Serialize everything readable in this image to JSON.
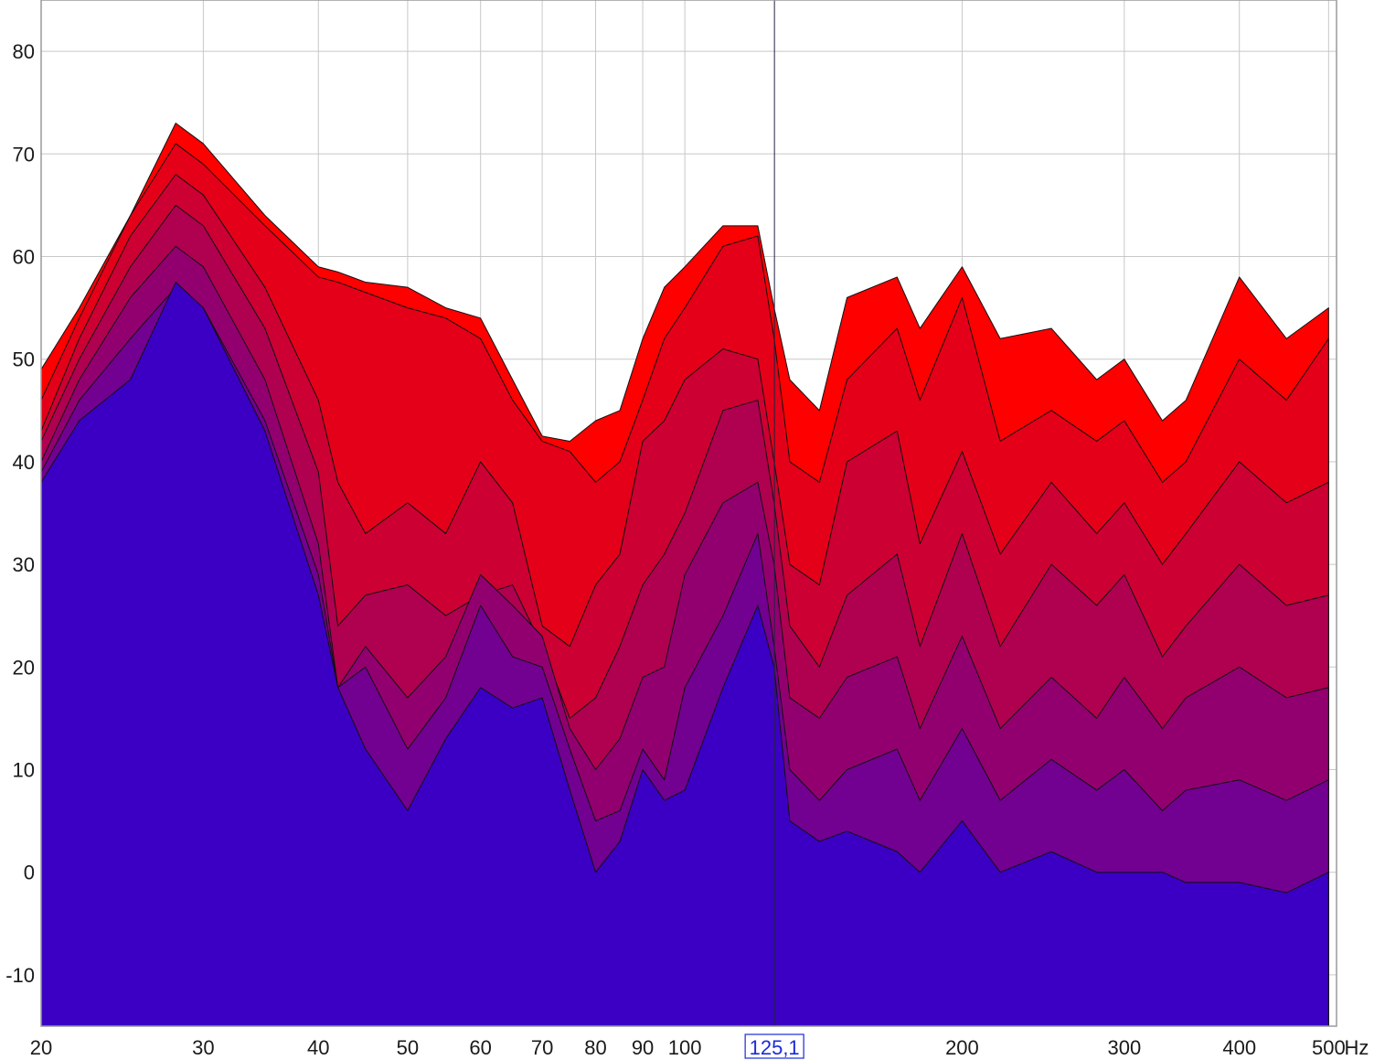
{
  "chart_data": {
    "type": "area",
    "title": "",
    "xlabel": "Hz",
    "ylabel": "",
    "x_scale": "log",
    "xlim": [
      20,
      510
    ],
    "ylim": [
      -15,
      85
    ],
    "grid": true,
    "x_tick_labels": [
      {
        "value": 20,
        "label": "20"
      },
      {
        "value": 30,
        "label": "30"
      },
      {
        "value": 40,
        "label": "40"
      },
      {
        "value": 50,
        "label": "50"
      },
      {
        "value": 60,
        "label": "60"
      },
      {
        "value": 70,
        "label": "70"
      },
      {
        "value": 80,
        "label": "80"
      },
      {
        "value": 90,
        "label": "90"
      },
      {
        "value": 100,
        "label": "100"
      },
      {
        "value": 200,
        "label": "200"
      },
      {
        "value": 300,
        "label": "300"
      },
      {
        "value": 400,
        "label": "400"
      },
      {
        "value": 500,
        "label": "500"
      }
    ],
    "x_unit": "Hz",
    "y_tick_labels": [
      {
        "value": 80,
        "label": "80"
      },
      {
        "value": 70,
        "label": "70"
      },
      {
        "value": 60,
        "label": "60"
      },
      {
        "value": 50,
        "label": "50"
      },
      {
        "value": 40,
        "label": "40"
      },
      {
        "value": 30,
        "label": "30"
      },
      {
        "value": 20,
        "label": "20"
      },
      {
        "value": 10,
        "label": "10"
      },
      {
        "value": 0,
        "label": "0"
      },
      {
        "value": -10,
        "label": "-10"
      }
    ],
    "cursor": {
      "x": 125.1,
      "label": "125,1",
      "color": "#1c2bd6"
    },
    "x": [
      20,
      22,
      25,
      28,
      30,
      35,
      40,
      42,
      45,
      50,
      55,
      60,
      65,
      70,
      75,
      80,
      85,
      90,
      95,
      100,
      110,
      120,
      125,
      130,
      140,
      150,
      170,
      180,
      200,
      220,
      250,
      280,
      300,
      330,
      350,
      400,
      450,
      500
    ],
    "series": [
      {
        "color": "#ff0000",
        "values": [
          49,
          55,
          64,
          73,
          71,
          64,
          59,
          58.5,
          57.5,
          57,
          55,
          54,
          48,
          42.5,
          42,
          44,
          45,
          52,
          57,
          59,
          63,
          63,
          55,
          48,
          45,
          56,
          58,
          53,
          59,
          52,
          53,
          48,
          50,
          44,
          46,
          58,
          52,
          55
        ]
      },
      {
        "color": "#e40018",
        "values": [
          46,
          54,
          64,
          71,
          69,
          63,
          58,
          57.5,
          56.5,
          55,
          54,
          52,
          46,
          42,
          41,
          38,
          40,
          46,
          52,
          55,
          61,
          62,
          52,
          40,
          38,
          48,
          53,
          46,
          56,
          42,
          45,
          42,
          44,
          38,
          40,
          50,
          46,
          52
        ]
      },
      {
        "color": "#cc0032",
        "values": [
          43,
          52,
          62,
          68,
          66,
          57,
          46,
          38,
          33,
          36,
          33,
          40,
          36,
          24,
          22,
          28,
          31,
          42,
          44,
          48,
          51,
          50,
          40,
          30,
          28,
          40,
          43,
          32,
          41,
          31,
          38,
          33,
          36,
          30,
          33,
          40,
          36,
          38
        ]
      },
      {
        "color": "#b00050",
        "values": [
          42,
          50,
          59,
          65,
          63,
          53,
          39,
          24,
          27,
          28,
          25,
          27,
          28,
          22,
          15,
          17,
          22,
          28,
          31,
          35,
          45,
          46,
          36,
          24,
          20,
          27,
          31,
          22,
          33,
          22,
          30,
          26,
          29,
          21,
          24,
          30,
          26,
          27
        ]
      },
      {
        "color": "#920070",
        "values": [
          40,
          48,
          56,
          61,
          59,
          48,
          32,
          18,
          22,
          17,
          21,
          29,
          26,
          23,
          14,
          10,
          13,
          19,
          20,
          29,
          36,
          38,
          30,
          17,
          15,
          19,
          21,
          14,
          23,
          14,
          19,
          15,
          19,
          14,
          17,
          20,
          17,
          18
        ]
      },
      {
        "color": "#720090",
        "values": [
          39,
          46,
          52,
          57,
          55,
          44,
          29,
          18,
          20,
          12,
          17,
          26,
          21,
          20,
          12,
          5,
          6,
          12,
          9,
          18,
          25,
          33,
          22,
          10,
          7,
          10,
          12,
          7,
          14,
          7,
          11,
          8,
          10,
          6,
          8,
          9,
          7,
          9
        ]
      },
      {
        "color": "#3b00c4",
        "values": [
          38,
          44,
          48,
          57.5,
          55,
          43,
          27,
          18,
          12,
          6,
          13,
          18,
          16,
          17,
          8,
          0,
          3,
          10,
          7,
          8,
          18,
          26,
          20,
          5,
          3,
          4,
          2,
          0,
          5,
          0,
          2,
          0,
          0,
          0,
          -1,
          -1,
          -2,
          0
        ]
      }
    ]
  }
}
